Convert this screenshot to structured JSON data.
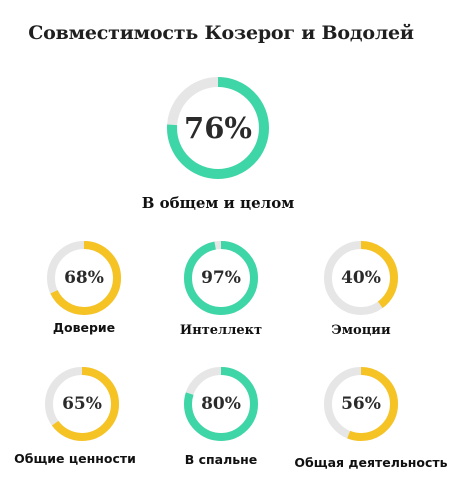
{
  "title": "Совместимость Козерог и Водолей",
  "colors": {
    "track": "#e6e6e6",
    "green": "#3ed6a6",
    "yellow": "#f6c325"
  },
  "overall": {
    "value": "76%",
    "fraction": 0.76,
    "color": "green",
    "label": "В общем и целом"
  },
  "aspects": [
    {
      "label": "Доверие",
      "value": "68%",
      "fraction": 0.68,
      "color": "yellow"
    },
    {
      "label": "Интеллект",
      "value": "97%",
      "fraction": 0.97,
      "color": "green"
    },
    {
      "label": "Эмоции",
      "value": "40%",
      "fraction": 0.4,
      "color": "yellow"
    },
    {
      "label": "Общие ценности",
      "value": "65%",
      "fraction": 0.65,
      "color": "yellow"
    },
    {
      "label": "В спальне",
      "value": "80%",
      "fraction": 0.8,
      "color": "green"
    },
    {
      "label": "Общая деятельность",
      "value": "56%",
      "fraction": 0.56,
      "color": "yellow"
    }
  ]
}
